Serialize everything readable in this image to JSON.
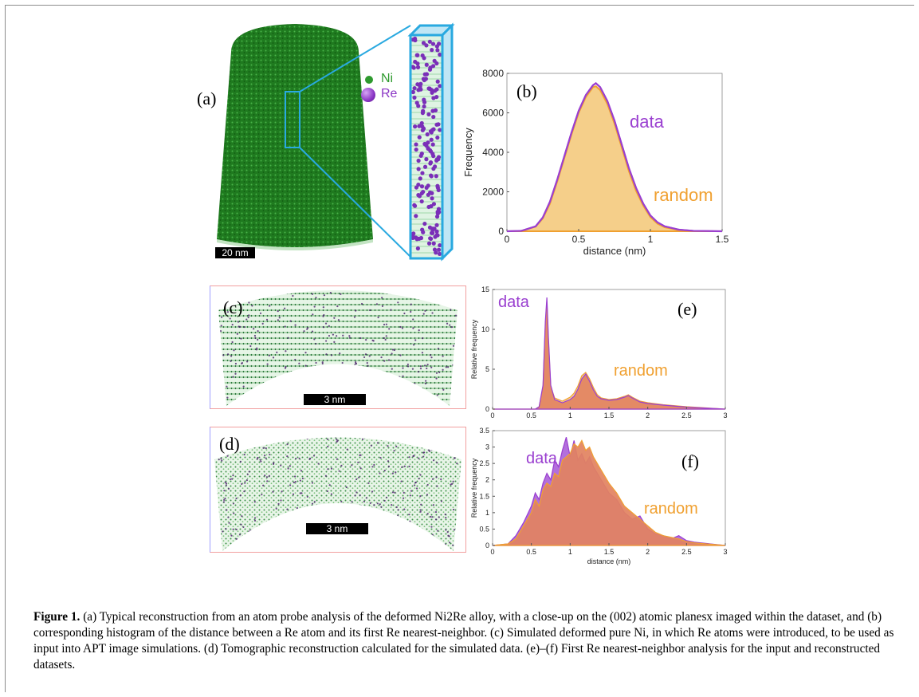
{
  "panels": {
    "a": {
      "label": "(a)",
      "scale_bar": "20 nm"
    },
    "b": {
      "label": "(b)"
    },
    "c": {
      "label": "(c)",
      "scale_bar": "3 nm"
    },
    "d": {
      "label": "(d)",
      "scale_bar": "3 nm"
    },
    "e": {
      "label": "(e)"
    },
    "f": {
      "label": "(f)"
    }
  },
  "legend": [
    {
      "name": "Ni",
      "color": "#2e9a2e"
    },
    {
      "name": "Re",
      "color": "#8a35c4"
    }
  ],
  "caption": {
    "title": "Figure 1.",
    "text": "(a) Typical reconstruction from an atom probe analysis of the deformed Ni2Re alloy, with a close-up on the (002) atomic planesx imaged within the dataset, and (b) corresponding histogram of the distance between a Re atom and its first Re nearest-neighbor. (c) Simulated deformed pure Ni, in which Re atoms were introduced, to be used as input into APT image simulations. (d) Tomographic reconstruction calculated for the simulated data. (e)–(f) First Re nearest-neighbor analysis for the input and reconstructed datasets."
  },
  "colors": {
    "data": "#9a3fd0",
    "random": "#f0a030",
    "random_fill": "#f5cf8a",
    "data_fill_e": "#e2825f",
    "green": "#2e8b2e",
    "cyan": "#29a9e0"
  },
  "chart_data": [
    {
      "id": "b",
      "type": "area",
      "xlabel": "distance (nm)",
      "ylabel": "Frequency",
      "xlim": [
        0,
        1.5
      ],
      "ylim": [
        0,
        8000
      ],
      "xticks": [
        "0",
        "0.5",
        "1",
        "1.5"
      ],
      "yticks": [
        "0",
        "2000",
        "4000",
        "6000",
        "8000"
      ],
      "series": [
        {
          "name": "data",
          "x": [
            0,
            0.1,
            0.2,
            0.25,
            0.3,
            0.35,
            0.4,
            0.45,
            0.5,
            0.55,
            0.6,
            0.62,
            0.65,
            0.7,
            0.75,
            0.8,
            0.85,
            0.9,
            0.95,
            1.0,
            1.05,
            1.1,
            1.2,
            1.3,
            1.5
          ],
          "values": [
            0,
            20,
            250,
            700,
            1500,
            2600,
            3800,
            5000,
            6100,
            6900,
            7400,
            7500,
            7300,
            6600,
            5600,
            4400,
            3200,
            2200,
            1400,
            800,
            450,
            250,
            80,
            20,
            0
          ]
        },
        {
          "name": "random",
          "x": [
            0,
            0.1,
            0.2,
            0.25,
            0.3,
            0.35,
            0.4,
            0.45,
            0.5,
            0.55,
            0.6,
            0.62,
            0.65,
            0.7,
            0.75,
            0.8,
            0.85,
            0.9,
            0.95,
            1.0,
            1.05,
            1.1,
            1.2,
            1.3,
            1.5
          ],
          "values": [
            0,
            20,
            230,
            650,
            1400,
            2500,
            3700,
            4900,
            6000,
            6800,
            7300,
            7350,
            7150,
            6450,
            5450,
            4250,
            3050,
            2050,
            1300,
            720,
            380,
            200,
            60,
            15,
            0
          ]
        }
      ]
    },
    {
      "id": "e",
      "type": "area",
      "xlabel": "",
      "ylabel": "Relative frequency",
      "xlim": [
        0,
        3
      ],
      "ylim": [
        0,
        15
      ],
      "xticks": [
        "0",
        "0.5",
        "1",
        "1.5",
        "2",
        "2.5",
        "3"
      ],
      "yticks": [
        "0",
        "5",
        "10",
        "15"
      ],
      "series": [
        {
          "name": "data",
          "x": [
            0,
            0.55,
            0.6,
            0.65,
            0.68,
            0.7,
            0.72,
            0.75,
            0.8,
            0.9,
            1.0,
            1.05,
            1.1,
            1.15,
            1.2,
            1.25,
            1.3,
            1.35,
            1.4,
            1.5,
            1.6,
            1.7,
            1.75,
            1.8,
            1.9,
            2.0,
            2.2,
            2.5,
            2.8,
            3.0
          ],
          "values": [
            0,
            0,
            0.3,
            3,
            11,
            14,
            9,
            3,
            1.2,
            0.8,
            1.2,
            1.6,
            2.5,
            3.8,
            4.4,
            3.5,
            2.4,
            1.6,
            1.3,
            1.1,
            1.2,
            1.5,
            1.7,
            1.4,
            0.9,
            0.7,
            0.5,
            0.25,
            0.1,
            0
          ]
        },
        {
          "name": "random",
          "x": [
            0,
            0.55,
            0.6,
            0.65,
            0.68,
            0.7,
            0.72,
            0.75,
            0.8,
            0.9,
            1.0,
            1.05,
            1.1,
            1.15,
            1.2,
            1.25,
            1.3,
            1.35,
            1.4,
            1.5,
            1.6,
            1.7,
            1.75,
            1.8,
            1.9,
            2.0,
            2.2,
            2.5,
            2.8,
            3.0
          ],
          "values": [
            0,
            0,
            0.3,
            2.8,
            10.5,
            13.5,
            8.5,
            2.8,
            1.4,
            1.0,
            1.5,
            2.0,
            2.9,
            4.2,
            4.6,
            3.8,
            2.7,
            1.8,
            1.4,
            1.2,
            1.3,
            1.6,
            1.8,
            1.5,
            1.0,
            0.8,
            0.55,
            0.3,
            0.12,
            0
          ]
        }
      ]
    },
    {
      "id": "f",
      "type": "area",
      "xlabel": "distance (nm)",
      "ylabel": "Relative frequency",
      "xlim": [
        0,
        3
      ],
      "ylim": [
        0,
        3.5
      ],
      "xticks": [
        "0",
        "0.5",
        "1",
        "1.5",
        "2",
        "2.5",
        "3"
      ],
      "yticks": [
        "0",
        "0.5",
        "1",
        "1.5",
        "2",
        "2.5",
        "3",
        "3.5"
      ],
      "series": [
        {
          "name": "data",
          "x": [
            0,
            0.2,
            0.3,
            0.4,
            0.5,
            0.55,
            0.6,
            0.65,
            0.7,
            0.75,
            0.8,
            0.85,
            0.9,
            0.95,
            1.0,
            1.05,
            1.1,
            1.15,
            1.2,
            1.25,
            1.3,
            1.35,
            1.4,
            1.5,
            1.6,
            1.7,
            1.8,
            1.9,
            2.0,
            2.1,
            2.2,
            2.3,
            2.4,
            2.5,
            2.6,
            2.8,
            3.0
          ],
          "values": [
            0,
            0.05,
            0.3,
            0.7,
            1.2,
            1.6,
            1.4,
            1.9,
            2.2,
            2.0,
            2.6,
            2.4,
            2.9,
            3.3,
            2.7,
            3.2,
            2.6,
            2.8,
            2.5,
            2.7,
            2.4,
            2.2,
            2.0,
            1.6,
            1.4,
            1.0,
            0.8,
            0.9,
            0.5,
            0.35,
            0.3,
            0.2,
            0.3,
            0.15,
            0.1,
            0.05,
            0
          ]
        },
        {
          "name": "random",
          "x": [
            0,
            0.2,
            0.3,
            0.4,
            0.5,
            0.55,
            0.6,
            0.65,
            0.7,
            0.75,
            0.8,
            0.85,
            0.9,
            0.95,
            1.0,
            1.05,
            1.1,
            1.15,
            1.2,
            1.25,
            1.3,
            1.35,
            1.4,
            1.5,
            1.6,
            1.7,
            1.8,
            1.9,
            2.0,
            2.1,
            2.2,
            2.3,
            2.4,
            2.5,
            2.6,
            2.8,
            3.0
          ],
          "values": [
            0,
            0.05,
            0.2,
            0.6,
            1.0,
            1.4,
            1.2,
            1.7,
            1.9,
            1.8,
            2.2,
            2.1,
            2.6,
            2.7,
            2.8,
            3.1,
            3.0,
            3.2,
            2.9,
            3.0,
            2.7,
            2.5,
            2.3,
            1.9,
            1.6,
            1.2,
            1.0,
            0.8,
            0.6,
            0.4,
            0.3,
            0.25,
            0.2,
            0.12,
            0.08,
            0.04,
            0
          ]
        }
      ]
    }
  ],
  "annotations": {
    "b": {
      "data": "data",
      "random": "random"
    },
    "e": {
      "data": "data",
      "random": "random"
    },
    "f": {
      "data": "data",
      "random": "random"
    }
  }
}
